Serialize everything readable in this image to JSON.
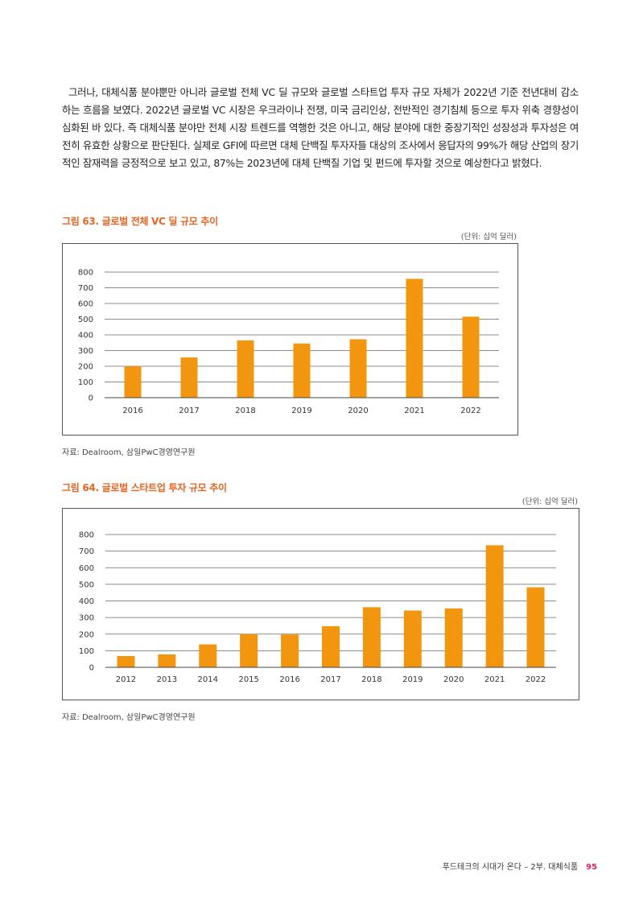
{
  "body_text": "그러나, 대체식품 분야뿐만 아니라 글로벌 전체 VC 딜 규모와 글로벌 스타트업 투자 규모 자체가 2022년 기준 전년대비 감소하는 흐름을 보였다. 2022년 글로벌 VC 시장은 우크라이나 전쟁, 미국 금리인상, 전반적인 경기침체 등으로 투자 위축 경향성이 심화된 바 있다. 즉 대체식품 분야만 전체 시장 트렌드를 역행한 것은 아니고, 해당 분야에 대한 중장기적인 성장성과 투자성은 여전히 유효한 상황으로 판단된다. 실제로 GFI에 따르면 대체 단백질 투자자들 대상의 조사에서 응답자의 99%가 해당 산업의 장기적인 잠재력을 긍정적으로 보고 있고, 87%는 2023년에 대체 단백질 기업 및 펀드에 투자할 것으로 예상한다고 밝혔다.",
  "figures": [
    {
      "title": "그림 63. 글로벌 전체 VC 딜 규모 추이",
      "unit": "(단위: 십억 달러)",
      "source": "자료: Dealroom, 삼일PwC경영연구원"
    },
    {
      "title": "그림 64. 글로벌 스타트업 투자 규모 추이",
      "unit": "(단위: 십억 달러)",
      "source": "자료: Dealroom, 삼일PwC경영연구원"
    }
  ],
  "chart_data": [
    {
      "type": "bar",
      "title": "그림 63. 글로벌 전체 VC 딜 규모 추이",
      "categories": [
        "2016",
        "2017",
        "2018",
        "2019",
        "2020",
        "2021",
        "2022"
      ],
      "values": [
        200,
        256,
        365,
        345,
        372,
        757,
        516
      ],
      "yticks": [
        0,
        100,
        200,
        300,
        400,
        500,
        600,
        700,
        800
      ],
      "ylim": [
        0,
        800
      ],
      "grid": true,
      "bar_color": "#f2960f"
    },
    {
      "type": "bar",
      "title": "그림 64. 글로벌 스타트업 투자 규모 추이",
      "categories": [
        "2012",
        "2013",
        "2014",
        "2015",
        "2016",
        "2017",
        "2018",
        "2019",
        "2020",
        "2021",
        "2022"
      ],
      "values": [
        68,
        78,
        138,
        200,
        198,
        248,
        362,
        342,
        355,
        735,
        482
      ],
      "yticks": [
        0,
        100,
        200,
        300,
        400,
        500,
        600,
        700,
        800
      ],
      "ylim": [
        0,
        800
      ],
      "grid": true,
      "bar_color": "#f2960f"
    }
  ],
  "footer": {
    "text": "푸드테크의 시대가 온다 – 2부. 대체식품",
    "page": "95"
  }
}
